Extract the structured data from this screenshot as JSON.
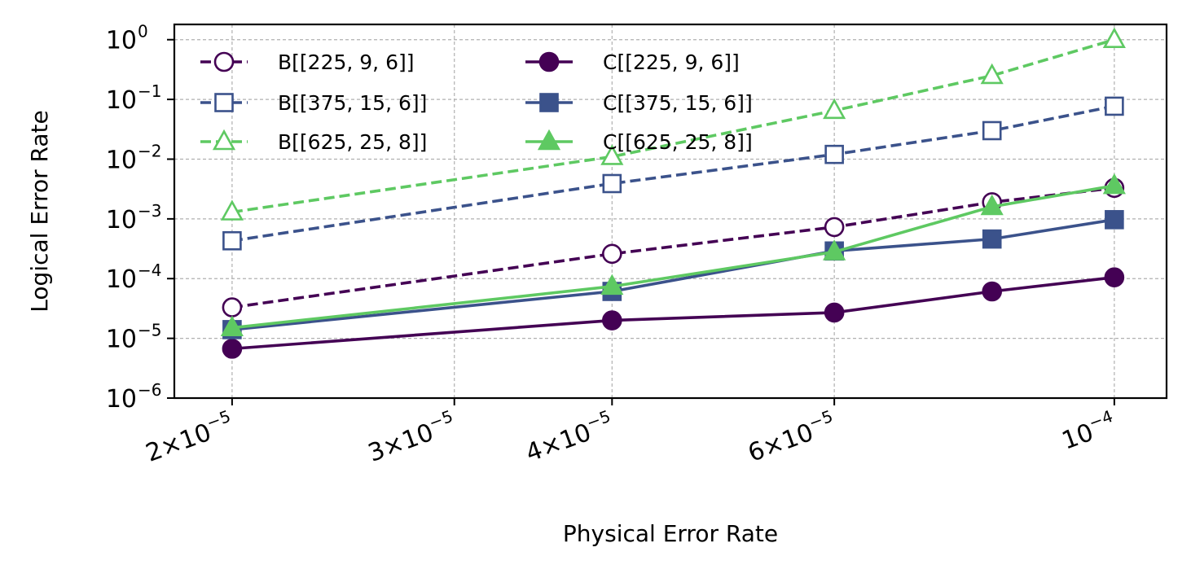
{
  "chart_data": {
    "type": "line",
    "xlabel": "Physical Error Rate",
    "ylabel": "Logical Error Rate",
    "xscale": "log",
    "yscale": "log",
    "grid": true,
    "legend_position": "upper-left",
    "legend_columns": 2,
    "xlim": [
      1.8e-05,
      0.00011
    ],
    "ylim": [
      1e-06,
      1.8
    ],
    "x": [
      2e-05,
      4e-05,
      6e-05,
      8e-05,
      0.0001
    ],
    "x_ticks": [
      {
        "value": 2e-05,
        "mantissa": "2",
        "exp": "−5"
      },
      {
        "value": 3e-05,
        "mantissa": "3",
        "exp": "−5"
      },
      {
        "value": 4e-05,
        "mantissa": "4",
        "exp": "−5"
      },
      {
        "value": 6e-05,
        "mantissa": "6",
        "exp": "−5"
      },
      {
        "value": 0.0001,
        "mantissa": "",
        "exp": "−4"
      }
    ],
    "y_ticks": [
      {
        "value": 1e-06,
        "exp": "−6"
      },
      {
        "value": 1e-05,
        "exp": "−5"
      },
      {
        "value": 0.0001,
        "exp": "−4"
      },
      {
        "value": 0.001,
        "exp": "−3"
      },
      {
        "value": 0.01,
        "exp": "−2"
      },
      {
        "value": 0.1,
        "exp": "−1"
      },
      {
        "value": 1,
        "exp": "0"
      }
    ],
    "series": [
      {
        "name": "B[[225, 9, 6]]",
        "color": "#440154",
        "marker": "circle",
        "filled": false,
        "dashed": true,
        "values": [
          3.3e-05,
          0.00026,
          0.00073,
          0.0019,
          0.0033
        ]
      },
      {
        "name": "B[[375, 15, 6]]",
        "color": "#3b528b",
        "marker": "square",
        "filled": false,
        "dashed": true,
        "values": [
          0.00043,
          0.0039,
          0.012,
          0.03,
          0.077
        ]
      },
      {
        "name": "B[[625, 25, 8]]",
        "color": "#5ec962",
        "marker": "triangle",
        "filled": false,
        "dashed": true,
        "values": [
          0.0013,
          0.011,
          0.065,
          0.25,
          1.0
        ]
      },
      {
        "name": "C[[225, 9, 6]]",
        "color": "#440154",
        "marker": "circle",
        "filled": true,
        "dashed": false,
        "values": [
          6.7e-06,
          2e-05,
          2.7e-05,
          6.1e-05,
          0.000105
        ]
      },
      {
        "name": "C[[375, 15, 6]]",
        "color": "#3b528b",
        "marker": "square",
        "filled": true,
        "dashed": false,
        "values": [
          1.4e-05,
          6.1e-05,
          0.00029,
          0.00046,
          0.00097
        ]
      },
      {
        "name": "C[[625, 25, 8]]",
        "color": "#5ec962",
        "marker": "triangle",
        "filled": true,
        "dashed": false,
        "values": [
          1.5e-05,
          7.4e-05,
          0.00028,
          0.0016,
          0.0036
        ]
      }
    ]
  }
}
